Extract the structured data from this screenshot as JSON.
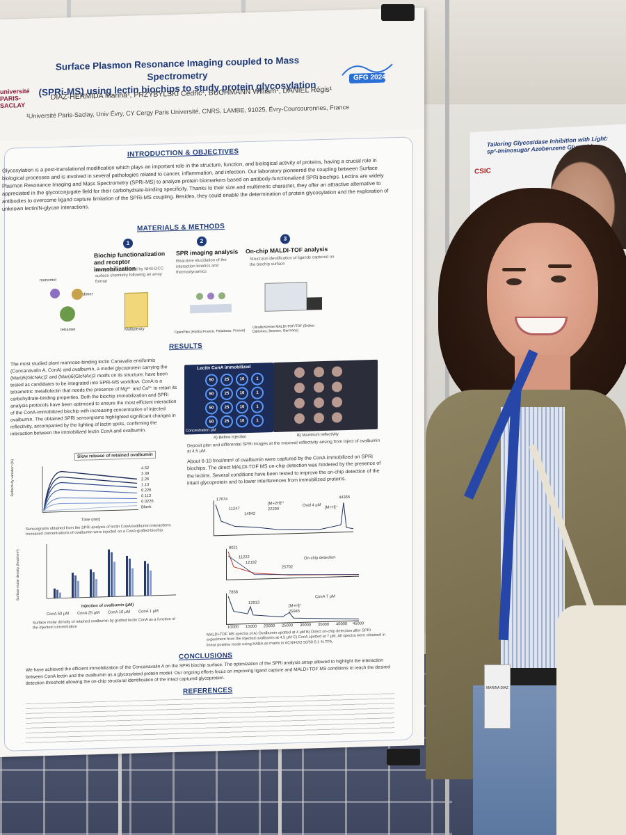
{
  "poster": {
    "title_line1": "Surface Plasmon Resonance Imaging coupled to Mass Spectrometry",
    "title_line2": "(SPRi-MS) using lectin biochips to study protein glycosylation",
    "authors": "DIAZ-HERMIDA Marina¹, PRZYBYLSKI Cédric¹, BUCHMANN William¹, DANIEL Régis¹",
    "affiliation": "¹Université Paris-Saclay, Univ Évry, CY Cergy Paris Université, CNRS, LAMBE, 91025, Évry-Courcouronnes, France",
    "logo_left": "université PARIS-SACLAY",
    "logo_gfg": "GFG 2024",
    "intro_title": "INTRODUCTION & OBJECTIVES",
    "intro_text": "Glycosylation is a post-translational modification which plays an important role in the structure, function, and biological activity of proteins, having a crucial role in biological processes and is involved in several pathologies related to cancer, inflammation, and infection. Our laboratory pioneered the coupling between Surface Plasmon Resonance Imaging and Mass Spectrometry (SPRi-MS) to analyze protein biomarkers based on antibody-functionalized SPRi biochips. Lectins are widely appreciated in the glycoconjugate field for their carbohydrate-binding specificity. Thanks to their size and multimeric character, they offer an attractive alternative to antibodies to overcome ligand capture limitation of the SPRi-MS coupling. Besides, they could enable the determination of protein glycosylation and the exploration of unknown lectin/N-glycan interactions.",
    "methods_title": "MATERIALS & METHODS",
    "steps": [
      {
        "num": "1",
        "title": "Biochip functionalization and receptor immobilization",
        "desc": "Receptors immobilized by NHS-DCC surface chemistry following an array format"
      },
      {
        "num": "2",
        "title": "SPR imaging analysis",
        "desc": "Real-time elucidation of the interaction kinetics and thermodynamics"
      },
      {
        "num": "3",
        "title": "On-chip MALDI-TOF analysis",
        "desc": "Structural identification of ligands captured on the biochip surface"
      }
    ],
    "methods_labels": {
      "monomer": "monomer",
      "dimer": "dimer",
      "tetramer": "tetramer",
      "multiplexity": "Multiplexity",
      "openplex": "OpenPlex (Horiba France, Palaiseau, France)",
      "maldi": "UltrafleXtreme MALDI-TOF/TOF (Brüker Daltonics, Bremen, Germany)"
    },
    "results_title": "RESULTS",
    "results_text": "The most studied plant mannose-binding lectin Canavalia ensiformis (Concanavalin A, ConA) and ovalbumin, a model glycoprotein carrying the (Man)5(GlcNAc)2 and (Man)6(GlcNAc)2 motifs on its structure; have been tested as candidates to be integrated into SPRi-MS workflow. ConA is a tetrametric metallolectin that needs the presence of Mg²⁺ and Ca²⁺ to retain its carbohydrate-binding properties. Both the biochip immobilization and SPRi analysis protocols have been optimised to ensure the most efficient interaction of the ConA-immobilized biochip with increasing concentration of injected ovalbumin. The obtained SPRi sensorgrams highlighted significant changes in reflectivity, accompanied by the lighting of lectin spots, confirming the interaction between the immobilized lectin ConA and ovalbumin.",
    "spr_panel": {
      "label": "Lectin ConA immobilized",
      "concentration_label": "Concentration µM",
      "spots": [
        "50",
        "25",
        "10",
        "1",
        "50",
        "25",
        "10",
        "1",
        "50",
        "25",
        "10",
        "1",
        "50",
        "25",
        "10",
        "1"
      ],
      "caption_a": "A) Before injection",
      "caption_b": "B) Maximum reflectivity",
      "caption": "Deposit plan and differential SPRi images at the maximal reflectivity arising from inject of ovalbumin at 4.5 µM."
    },
    "capture_text": "About 6-10 fmol/mm² of ovalbumin were captured by the ConA immobilized on SPRi biochips. The direct MALDI-TOF MS on-chip detection was hindered by the presence of the lectins. Several conditions have been tested to improve the on-chip detection of the intact glycoprotein and to lower interferences from immobilized proteins.",
    "sensorgram": {
      "title": "Slow release of retained ovalbumin",
      "xlabel": "Time (min)",
      "ylabel": "Reflectivity variation (%)",
      "legend": [
        "4.52",
        "3.39",
        "2.26",
        "1.13",
        "0.226",
        "0.113",
        "0.0226",
        "Blank"
      ],
      "caption": "Sensorgrams obtained from the SPRi analysis of lectin ConA/ovalbumin interactions. Increased concentrations of ovalbumin were injected on a ConA-grafted biochip."
    },
    "bar_chart": {
      "ylabel": "Surface molar density (fmol/mm²)",
      "xlabel": "Injection of ovalbumin (µM)",
      "legend": [
        "ConA 50 µM",
        "ConA 25 µM",
        "ConA 10 µM",
        "ConA 1 µM"
      ],
      "caption": "Surface molar density of retained ovalbumin by grafted lectin ConA as a function of the injected concentration"
    },
    "ms": {
      "labels_a": [
        "17674",
        "11247",
        "14942",
        "[M+2H]²⁺",
        "22290",
        "Oval 4 µM",
        "[M+H]⁺",
        "44365"
      ],
      "labels_b": [
        "8021",
        "11222",
        "12192",
        "25702",
        "On-chip detection"
      ],
      "labels_c": [
        "7858",
        "12913",
        "[M+H]⁺",
        "25945",
        "ConA 7 µM"
      ],
      "x_ticks": [
        "10000",
        "15000",
        "20000",
        "25000",
        "30000",
        "35000",
        "40000",
        "45000"
      ],
      "caption": "MALDI-TOF MS spectra of A) Ovalbumin spotted at 4 µM B) Direct on-chip detection after SPRi experiment from the injected ovalbumin at 4.5 µM C) ConA spotted at 7 µM. All spectra were obtained in linear positive mode using HABA as matrix in ACN/H2O 50/50 0.1 % TFA."
    },
    "conclusions_title": "CONCLUSIONS",
    "conclusions_text": "We have achieved the efficient immobilization of the Concanavalin A on the SPRi biochip surface. The optimization of the SPRi analysis setup allowed to highlight the interaction between ConA lectin and the ovalbumin as a glycosylated protein model. Our ongoing efforts focus on improving ligand capture and MALDI-TOF MS conditions to reach the desired detection threshold allowing the on-chip structural identification of the intact captured glycoprotein.",
    "references_title": "REFERENCES"
  },
  "background_poster": {
    "title": "Tailoring Glycosidase Inhibition with Light: sp²-Iminosugar Azobenzene Glycosid...",
    "logo": "CSIC"
  },
  "badge_text": "MARINA DIAZ"
}
